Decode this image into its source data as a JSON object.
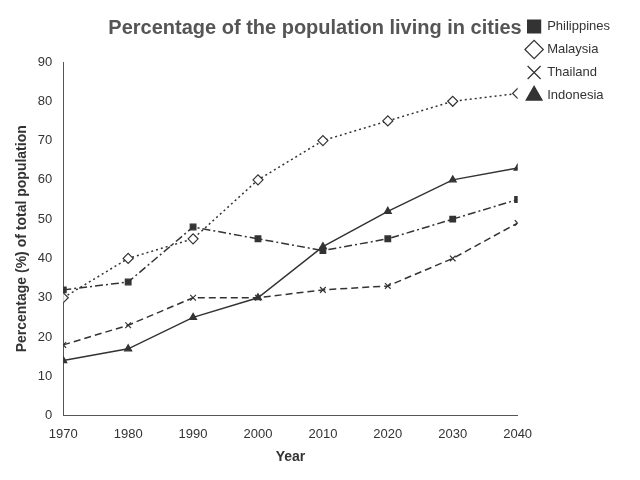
{
  "chart_data": {
    "type": "line",
    "title": "Percentage of the population living in cities",
    "x_label": "Year",
    "y_label": "Percentage (%) of total population",
    "x": [
      1970,
      1980,
      1990,
      2000,
      2010,
      2020,
      2030,
      2040
    ],
    "series": [
      {
        "name": "Philippines",
        "color": "#333333",
        "marker": "square",
        "line_style": "dashdot",
        "values": [
          32,
          34,
          48,
          45,
          42,
          45,
          50,
          55
        ]
      },
      {
        "name": "Malaysia",
        "color": "#333333",
        "marker": "diamond",
        "line_style": "dotted",
        "values": [
          30,
          40,
          45,
          60,
          70,
          75,
          80,
          82
        ]
      },
      {
        "name": "Thailand",
        "color": "#333333",
        "marker": "x",
        "line_style": "dashed",
        "values": [
          18,
          23,
          30,
          30,
          32,
          33,
          40,
          49
        ]
      },
      {
        "name": "Indonesia",
        "color": "#333333",
        "marker": "triangle",
        "line_style": "solid",
        "values": [
          14,
          17,
          25,
          30,
          43,
          52,
          60,
          63
        ]
      }
    ],
    "xlim": [
      1970,
      2040
    ],
    "xticks": [
      1970,
      1980,
      1990,
      2000,
      2010,
      2020,
      2030,
      2040
    ],
    "ylim": [
      0,
      90
    ],
    "yticks": [
      0,
      10,
      20,
      30,
      40,
      50,
      60,
      70,
      80,
      90
    ],
    "grid": false,
    "legend": "right"
  }
}
